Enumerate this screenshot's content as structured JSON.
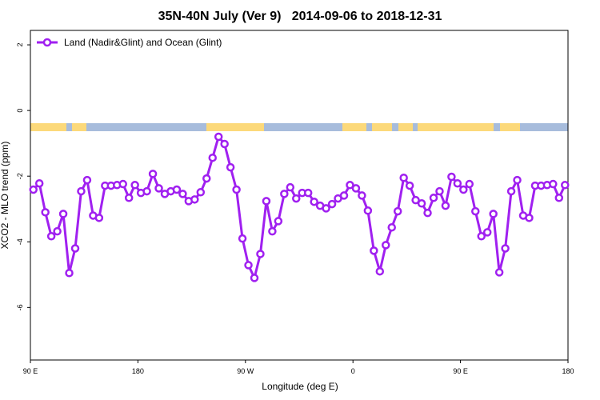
{
  "chart_data": {
    "type": "line",
    "title": "35N-40N July (Ver 9)   2014-09-06 to 2018-12-31",
    "x_label": "Longitude (deg E)",
    "y_label": "XCO2 - MLO trend (ppm)",
    "x": [
      92.5,
      97.5,
      102.5,
      107.5,
      112.5,
      117.5,
      122.5,
      127.5,
      132.5,
      137.5,
      142.5,
      147.5,
      152.5,
      157.5,
      162.5,
      167.5,
      172.5,
      177.5,
      182.5,
      187.5,
      192.5,
      197.5,
      202.5,
      207.5,
      212.5,
      217.5,
      222.5,
      227.5,
      232.5,
      237.5,
      242.5,
      247.5,
      252.5,
      257.5,
      262.5,
      267.5,
      272.5,
      277.5,
      282.5,
      287.5,
      292.5,
      297.5,
      302.5,
      307.5,
      312.5,
      317.5,
      322.5,
      327.5,
      332.5,
      337.5,
      342.5,
      347.5,
      352.5,
      357.5,
      362.5,
      367.5,
      372.5,
      377.5,
      382.5,
      387.5,
      392.5,
      397.5,
      402.5,
      407.5,
      412.5,
      417.5,
      422.5,
      427.5,
      432.5,
      437.5,
      442.5,
      447.5,
      452.5,
      457.5,
      462.5,
      467.5,
      472.5,
      477.5,
      482.5,
      487.5,
      492.5,
      497.5,
      502.5,
      507.5,
      512.5,
      517.5,
      522.5,
      527.5,
      532.5,
      537.5
    ],
    "series": [
      {
        "name": "Land (Nadir&Glint) and Ocean (Glint)",
        "color": "#a020f0",
        "values": [
          -2.41,
          -2.22,
          -3.1,
          -3.83,
          -3.68,
          -3.15,
          -4.95,
          -4.2,
          -2.46,
          -2.12,
          -3.2,
          -3.27,
          -2.29,
          -2.29,
          -2.27,
          -2.24,
          -2.66,
          -2.27,
          -2.51,
          -2.46,
          -1.93,
          -2.37,
          -2.54,
          -2.46,
          -2.41,
          -2.54,
          -2.76,
          -2.71,
          -2.49,
          -2.07,
          -1.44,
          -0.8,
          -1.02,
          -1.73,
          -2.41,
          -3.9,
          -4.71,
          -5.1,
          -4.37,
          -2.76,
          -3.68,
          -3.37,
          -2.54,
          -2.34,
          -2.68,
          -2.51,
          -2.51,
          -2.78,
          -2.9,
          -2.98,
          -2.85,
          -2.68,
          -2.59,
          -2.27,
          -2.37,
          -2.59,
          -3.05,
          -4.27,
          -4.9,
          -4.1,
          -3.56,
          -3.07,
          -2.05,
          -2.29,
          -2.73,
          -2.83,
          -3.12,
          -2.66,
          -2.46,
          -2.9,
          -2.02,
          -2.22,
          -2.41,
          -2.24,
          -3.07,
          -3.83,
          -3.71,
          -3.15,
          -4.93,
          -4.2,
          -2.46,
          -2.12,
          -3.2,
          -3.27,
          -2.29,
          -2.29,
          -2.27,
          -2.24,
          -2.66,
          -2.27
        ]
      }
    ],
    "xlim": [
      90,
      540
    ],
    "xticks": [
      {
        "value": 90,
        "label": "90 E"
      },
      180,
      {
        "value": 270,
        "label": "90 W"
      },
      {
        "value": 360,
        "label": "0"
      },
      {
        "value": 450,
        "label": "90 E"
      },
      {
        "value": 540,
        "label": "180"
      }
    ],
    "ylim": [
      -7.6,
      2.44
    ],
    "yticks": [
      -6,
      -4,
      -2,
      0,
      2
    ],
    "legend": "top-left"
  }
}
